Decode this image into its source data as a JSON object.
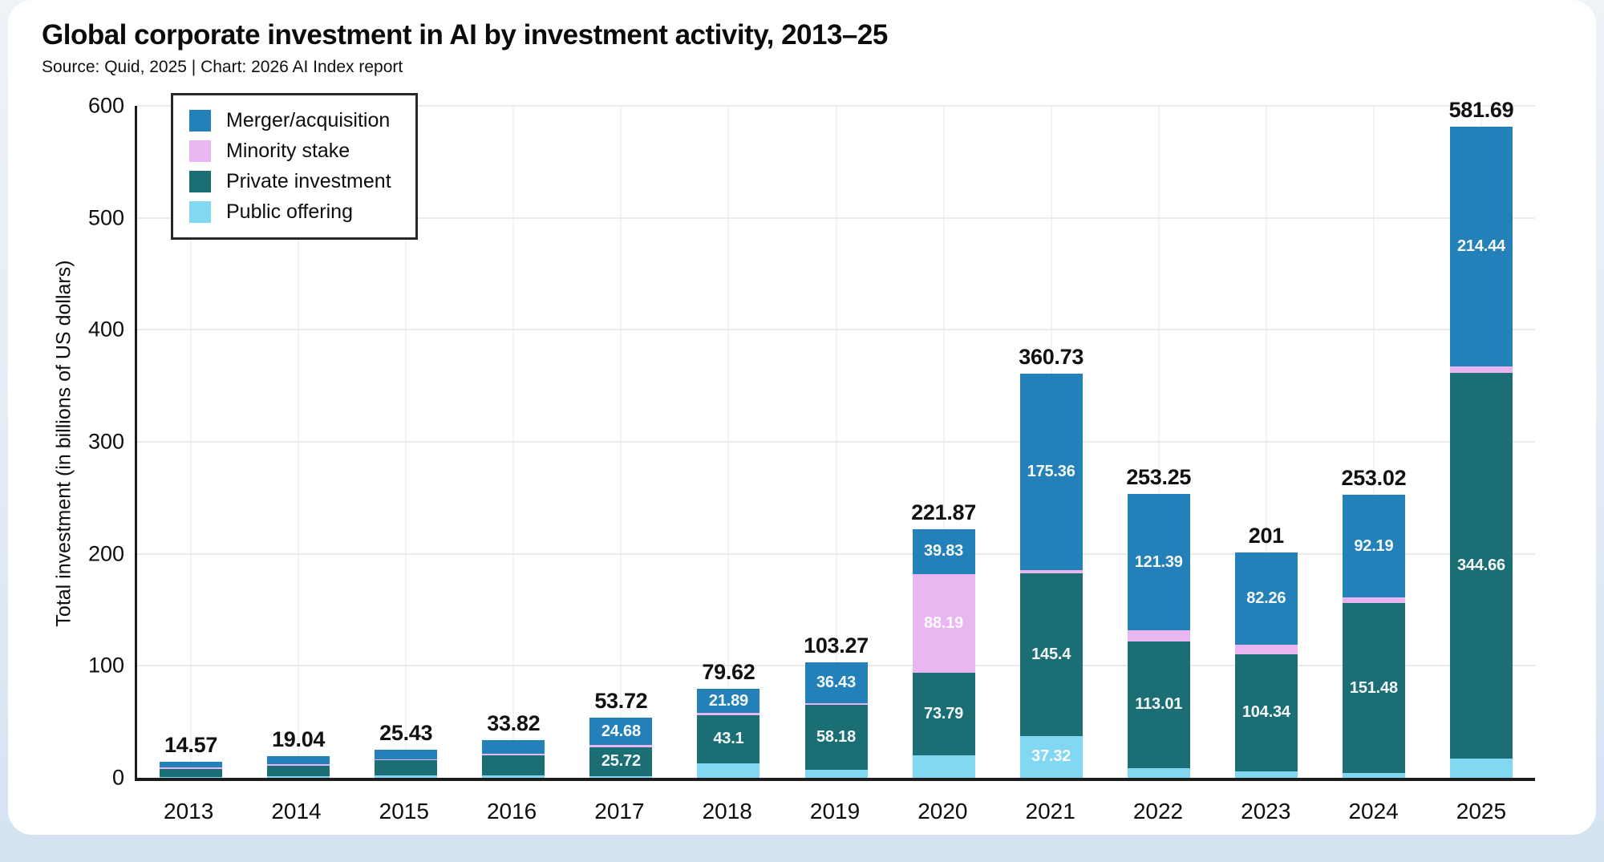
{
  "page": {
    "title": "Global corporate investment in AI by investment activity, 2013–25",
    "subtitle": "Source: Quid, 2025 | Chart: 2026 AI Index report"
  },
  "colors": {
    "card_bg": "#ffffff",
    "page_bg_bottom": "#d3e2f1",
    "axis": "#1c1c1c",
    "grid_horizontal": "#ebebeb",
    "grid_vertical": "#f3f3f3",
    "total_label": "#111111",
    "segment_label": "#ffffff"
  },
  "chart_data": {
    "type": "bar",
    "stacked": true,
    "grid": true,
    "legend_position": "top-left",
    "title": "Global corporate investment in AI by investment activity, 2013–25",
    "subtitle": "Source: Quid, 2025 | Chart: 2026 AI Index report",
    "xlabel": "",
    "ylabel": "Total investment (in billions of US dollars)",
    "ylim": [
      0,
      600
    ],
    "yticks": [
      0,
      100,
      200,
      300,
      400,
      500,
      600
    ],
    "categories": [
      "2013",
      "2014",
      "2015",
      "2016",
      "2017",
      "2018",
      "2019",
      "2020",
      "2021",
      "2022",
      "2023",
      "2024",
      "2025"
    ],
    "totals": [
      "14.57",
      "19.04",
      "25.43",
      "33.82",
      "53.72",
      "79.62",
      "103.27",
      "221.87",
      "360.73",
      "253.25",
      "201",
      "253.02",
      "581.69"
    ],
    "total_values": [
      14.57,
      19.04,
      25.43,
      33.82,
      53.72,
      79.62,
      103.27,
      221.87,
      360.73,
      253.25,
      201,
      253.02,
      581.69
    ],
    "series": [
      {
        "name": "Merger/acquisition",
        "key": "merger-acquisition",
        "color": "#2380b8",
        "values": [
          5.5,
          7.2,
          8.9,
          12.5,
          24.68,
          21.89,
          36.43,
          39.83,
          175.36,
          121.39,
          82.26,
          92.19,
          214.44
        ],
        "labels": [
          null,
          null,
          null,
          null,
          "24.68",
          "21.89",
          "36.43",
          "39.83",
          "175.36",
          "121.39",
          "82.26",
          "92.19",
          "214.44"
        ]
      },
      {
        "name": "Minority stake",
        "key": "minority-stake",
        "color": "#e9b6f2",
        "values": [
          1.1,
          1.0,
          1.1,
          1.4,
          1.82,
          1.63,
          1.66,
          88.19,
          2.65,
          10.0,
          8.5,
          5.0,
          5.6
        ],
        "labels": [
          null,
          null,
          null,
          null,
          null,
          null,
          null,
          "88.19",
          null,
          null,
          null,
          null,
          null
        ]
      },
      {
        "name": "Private investment",
        "key": "private-investment",
        "color": "#1a6e74",
        "values": [
          7.0,
          9.1,
          13.5,
          18.0,
          25.72,
          43.1,
          58.18,
          73.79,
          145.4,
          113.01,
          104.34,
          151.48,
          344.66
        ],
        "labels": [
          null,
          null,
          null,
          null,
          "25.72",
          "43.1",
          "58.18",
          "73.79",
          "145.4",
          "113.01",
          "104.34",
          "151.48",
          "344.66"
        ]
      },
      {
        "name": "Public offering",
        "key": "public-offering",
        "color": "#82d8f2",
        "values": [
          0.97,
          1.74,
          1.93,
          1.92,
          1.5,
          13.0,
          7.0,
          20.06,
          37.32,
          8.85,
          5.9,
          4.35,
          16.99
        ],
        "labels": [
          null,
          null,
          null,
          null,
          null,
          null,
          null,
          null,
          "37.32",
          null,
          null,
          null,
          null
        ]
      }
    ]
  }
}
